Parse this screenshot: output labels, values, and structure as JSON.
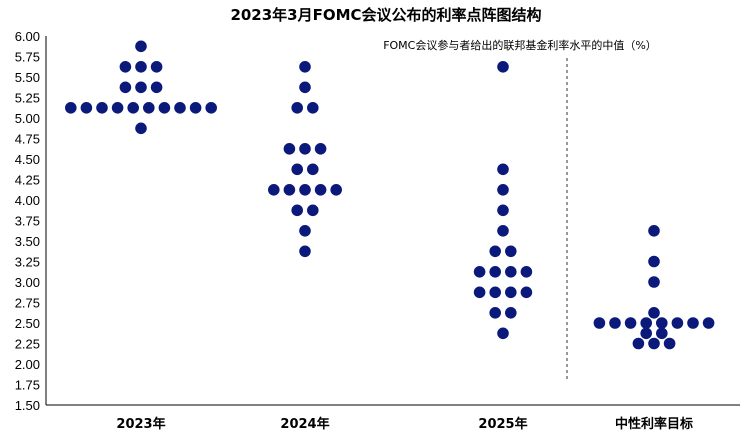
{
  "chart_data": {
    "type": "scatter",
    "title": "2023年3月FOMC会议公布的利率点阵图结构",
    "subtitle": "FOMC会议参与者给出的联邦基金利率水平的中值（%）",
    "categories": [
      "2023年",
      "2024年",
      "2025年",
      "中性利率目标"
    ],
    "ylim": [
      1.5,
      6.0
    ],
    "yticks": [
      "6.00",
      "5.75",
      "5.50",
      "5.25",
      "5.00",
      "4.75",
      "4.50",
      "4.25",
      "4.00",
      "3.75",
      "3.50",
      "3.25",
      "3.00",
      "2.75",
      "2.50",
      "2.25",
      "2.00",
      "1.75",
      "1.50"
    ],
    "dot_color": "#0b1a7a",
    "series": [
      {
        "category": "2023年",
        "points": [
          {
            "y": 5.875,
            "count": 1
          },
          {
            "y": 5.625,
            "count": 3
          },
          {
            "y": 5.375,
            "count": 3
          },
          {
            "y": 5.125,
            "count": 10
          },
          {
            "y": 4.875,
            "count": 1
          }
        ]
      },
      {
        "category": "2024年",
        "points": [
          {
            "y": 5.625,
            "count": 1
          },
          {
            "y": 5.375,
            "count": 1
          },
          {
            "y": 5.125,
            "count": 2
          },
          {
            "y": 4.625,
            "count": 3
          },
          {
            "y": 4.375,
            "count": 2
          },
          {
            "y": 4.125,
            "count": 5
          },
          {
            "y": 3.875,
            "count": 2
          },
          {
            "y": 3.625,
            "count": 1
          },
          {
            "y": 3.375,
            "count": 1
          }
        ]
      },
      {
        "category": "2025年",
        "points": [
          {
            "y": 5.625,
            "count": 1
          },
          {
            "y": 4.375,
            "count": 1
          },
          {
            "y": 4.125,
            "count": 1
          },
          {
            "y": 3.875,
            "count": 1
          },
          {
            "y": 3.625,
            "count": 1
          },
          {
            "y": 3.375,
            "count": 2
          },
          {
            "y": 3.125,
            "count": 4
          },
          {
            "y": 2.875,
            "count": 4
          },
          {
            "y": 2.625,
            "count": 2
          },
          {
            "y": 2.375,
            "count": 1
          }
        ]
      },
      {
        "category": "中性利率目标",
        "points": [
          {
            "y": 3.625,
            "count": 1
          },
          {
            "y": 3.25,
            "count": 1
          },
          {
            "y": 3.0,
            "count": 1
          },
          {
            "y": 2.625,
            "count": 1
          },
          {
            "y": 2.5,
            "count": 8
          },
          {
            "y": 2.375,
            "count": 2
          },
          {
            "y": 2.25,
            "count": 3
          }
        ]
      }
    ]
  }
}
